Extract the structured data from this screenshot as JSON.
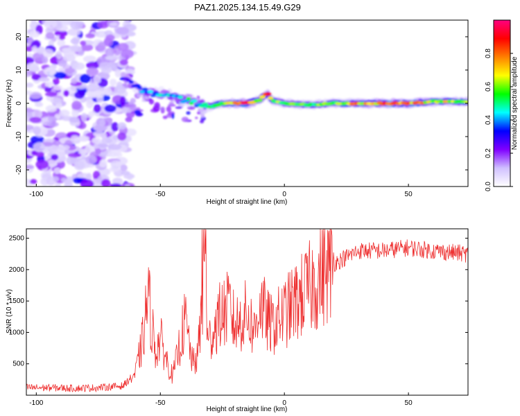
{
  "figure": {
    "title": "PAZ1.2025.134.15.49.G29"
  },
  "chart_data": [
    {
      "type": "heatmap",
      "xlabel": "Height of straight line (km)",
      "ylabel": "Frequency (Hz)",
      "xlim": [
        -104,
        74
      ],
      "ylim": [
        -25,
        25
      ],
      "x_ticks": [
        -100,
        -50,
        0,
        50
      ],
      "y_ticks": [
        -20,
        -10,
        0,
        10,
        20
      ],
      "colorbar": {
        "label": "Normalized spectral amplitude",
        "range": [
          0,
          1
        ],
        "ticks": [
          0.0,
          0.2,
          0.4,
          0.6,
          0.8
        ],
        "colors": [
          "#ffffff",
          "#d0c0ff",
          "#8000ff",
          "#0000ff",
          "#00ffff",
          "#00ff00",
          "#ffff00",
          "#ff8000",
          "#ff0000",
          "#ff0080"
        ]
      },
      "ridge": {
        "description_x": [
          -65,
          -60,
          -55,
          -50,
          -45,
          -40,
          -35,
          -30,
          -25,
          -20,
          -15,
          -10,
          -7,
          -5,
          0,
          10,
          20,
          30,
          40,
          50,
          60,
          74
        ],
        "frequency_hz": [
          8,
          5,
          3,
          3,
          2,
          1,
          0,
          -1,
          0,
          0,
          0,
          1,
          3,
          1,
          0,
          -0.5,
          0,
          0,
          0,
          0,
          0.5,
          0.5
        ],
        "amplitude": [
          0.3,
          0.35,
          0.4,
          0.45,
          0.45,
          0.5,
          0.45,
          0.5,
          0.6,
          0.8,
          0.85,
          0.6,
          0.8,
          0.6,
          0.55,
          0.55,
          0.6,
          0.75,
          0.8,
          0.8,
          0.7,
          0.6
        ]
      },
      "noise_region_x": [
        -104,
        -62
      ]
    },
    {
      "type": "line",
      "xlabel": "Height of straight line (km)",
      "ylabel": "SNR (10 * v/v)",
      "xlim": [
        -104,
        74
      ],
      "ylim": [
        0,
        2650
      ],
      "x_ticks": [
        -100,
        -50,
        0,
        50
      ],
      "y_ticks": [
        500,
        1000,
        1500,
        2000,
        2500
      ],
      "color": "#ee3030",
      "series": [
        {
          "x": [
            -104,
            -95,
            -85,
            -75,
            -65,
            -60,
            -57,
            -55,
            -52,
            -50,
            -47,
            -45,
            -40,
            -37,
            -35,
            -33,
            -32,
            -31,
            -30,
            -27,
            -25,
            -22,
            -20,
            -15,
            -12,
            -10,
            -7,
            -5,
            0,
            5,
            10,
            15,
            20,
            25,
            30,
            40,
            50,
            60,
            74
          ],
          "y": [
            120,
            120,
            110,
            120,
            150,
            350,
            900,
            1600,
            700,
            900,
            500,
            300,
            1200,
            500,
            600,
            1500,
            2600,
            800,
            900,
            1200,
            1300,
            1400,
            1100,
            1300,
            1000,
            1500,
            1200,
            1100,
            1300,
            1500,
            1700,
            1900,
            2100,
            2200,
            2300,
            2300,
            2350,
            2300,
            2250
          ]
        }
      ]
    }
  ]
}
